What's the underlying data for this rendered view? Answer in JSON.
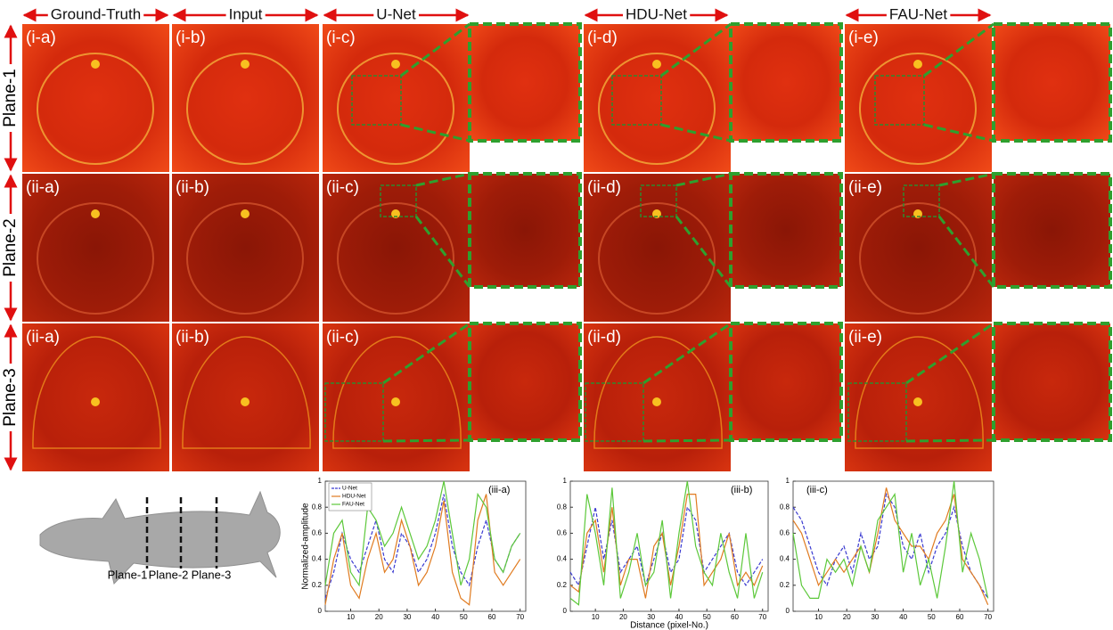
{
  "headers": [
    "Ground-Truth",
    "Input",
    "U-Net",
    "HDU-Net",
    "FAU-Net"
  ],
  "rows": [
    "Plane-1",
    "Plane-2",
    "Plane-3"
  ],
  "panels": [
    [
      "(i-a)",
      "(i-b)",
      "(i-c)",
      "(i-d)",
      "(i-e)"
    ],
    [
      "(ii-a)",
      "(ii-b)",
      "(ii-c)",
      "(ii-d)",
      "(ii-e)"
    ],
    [
      "(ii-a)",
      "(ii-b)",
      "(ii-c)",
      "(ii-d)",
      "(ii-e)"
    ]
  ],
  "plane_labels": [
    "Plane-1",
    "Plane-2",
    "Plane-3"
  ],
  "chart_data": [
    {
      "type": "line",
      "annotation": "(iii-a)",
      "ylabel": "Normalized-amplitude",
      "legend": true,
      "legend_position": "upper left",
      "x": [
        1,
        4,
        7,
        10,
        13,
        16,
        19,
        22,
        25,
        28,
        31,
        34,
        37,
        40,
        43,
        46,
        49,
        52,
        55,
        58,
        61,
        64,
        67,
        70
      ],
      "xlim": [
        1,
        72
      ],
      "xticks": [
        10,
        20,
        30,
        40,
        50,
        60,
        70
      ],
      "ylim": [
        0,
        1
      ],
      "yticks": [
        0,
        0.2,
        0.4,
        0.6,
        0.8,
        1
      ],
      "series": [
        {
          "name": "U-Net",
          "color": "#3a3ad0",
          "linestyle": "dashed",
          "values": [
            0.1,
            0.3,
            0.6,
            0.4,
            0.3,
            0.5,
            0.7,
            0.4,
            0.3,
            0.6,
            0.5,
            0.3,
            0.4,
            0.6,
            0.9,
            0.5,
            0.3,
            0.2,
            0.5,
            0.7,
            0.4,
            0.3,
            0.5,
            0.6
          ]
        },
        {
          "name": "HDU-Net",
          "color": "#e07b20",
          "linestyle": "solid",
          "values": [
            0.05,
            0.4,
            0.6,
            0.2,
            0.1,
            0.4,
            0.6,
            0.3,
            0.4,
            0.7,
            0.5,
            0.2,
            0.3,
            0.5,
            0.85,
            0.3,
            0.1,
            0.05,
            0.7,
            0.9,
            0.3,
            0.2,
            0.3,
            0.4
          ]
        },
        {
          "name": "FAU-Net",
          "color": "#5cc83a",
          "linestyle": "solid",
          "values": [
            0.2,
            0.6,
            0.7,
            0.3,
            0.2,
            0.8,
            0.7,
            0.5,
            0.6,
            0.8,
            0.6,
            0.4,
            0.5,
            0.7,
            1,
            0.6,
            0.2,
            0.4,
            0.9,
            0.8,
            0.4,
            0.3,
            0.5,
            0.6
          ]
        }
      ]
    },
    {
      "type": "line",
      "annotation": "(iii-b)",
      "xlabel": "Distance (pixel-No.)",
      "legend": false,
      "x": [
        1,
        4,
        7,
        10,
        13,
        16,
        19,
        22,
        25,
        28,
        31,
        34,
        37,
        40,
        43,
        46,
        49,
        52,
        55,
        58,
        61,
        64,
        67,
        70
      ],
      "xlim": [
        1,
        72
      ],
      "xticks": [
        10,
        20,
        30,
        40,
        50,
        60,
        70
      ],
      "ylim": [
        0,
        1
      ],
      "yticks": [
        0,
        0.2,
        0.4,
        0.6,
        0.8,
        1
      ],
      "series": [
        {
          "name": "U-Net",
          "color": "#3a3ad0",
          "linestyle": "dashed",
          "values": [
            0.3,
            0.2,
            0.5,
            0.8,
            0.4,
            0.7,
            0.3,
            0.4,
            0.5,
            0.2,
            0.4,
            0.6,
            0.3,
            0.4,
            0.8,
            0.7,
            0.3,
            0.4,
            0.5,
            0.6,
            0.3,
            0.2,
            0.3,
            0.4
          ]
        },
        {
          "name": "HDU-Net",
          "color": "#e07b20",
          "linestyle": "solid",
          "values": [
            0.2,
            0.15,
            0.6,
            0.7,
            0.3,
            0.8,
            0.2,
            0.4,
            0.4,
            0.1,
            0.5,
            0.6,
            0.2,
            0.5,
            0.9,
            0.9,
            0.2,
            0.3,
            0.4,
            0.6,
            0.2,
            0.3,
            0.2,
            0.35
          ]
        },
        {
          "name": "FAU-Net",
          "color": "#5cc83a",
          "linestyle": "solid",
          "values": [
            0.1,
            0.05,
            0.9,
            0.6,
            0.2,
            0.95,
            0.1,
            0.3,
            0.6,
            0.2,
            0.3,
            0.7,
            0.1,
            0.6,
            1,
            0.5,
            0.3,
            0.2,
            0.6,
            0.3,
            0.1,
            0.6,
            0.1,
            0.3
          ]
        }
      ]
    },
    {
      "type": "line",
      "annotation": "(iii-c)",
      "legend": false,
      "x": [
        1,
        4,
        7,
        10,
        13,
        16,
        19,
        22,
        25,
        28,
        31,
        34,
        37,
        40,
        43,
        46,
        49,
        52,
        55,
        58,
        61,
        64,
        67,
        70
      ],
      "xlim": [
        1,
        72
      ],
      "xticks": [
        10,
        20,
        30,
        40,
        50,
        60,
        70
      ],
      "ylim": [
        0,
        1
      ],
      "yticks": [
        0,
        0.2,
        0.4,
        0.6,
        0.8,
        1
      ],
      "series": [
        {
          "name": "U-Net",
          "color": "#3a3ad0",
          "linestyle": "dashed",
          "values": [
            0.8,
            0.7,
            0.5,
            0.3,
            0.2,
            0.4,
            0.5,
            0.3,
            0.6,
            0.4,
            0.5,
            0.9,
            0.8,
            0.5,
            0.4,
            0.6,
            0.3,
            0.5,
            0.6,
            0.8,
            0.5,
            0.3,
            0.2,
            0.1
          ]
        },
        {
          "name": "HDU-Net",
          "color": "#e07b20",
          "linestyle": "solid",
          "values": [
            0.7,
            0.6,
            0.4,
            0.2,
            0.3,
            0.4,
            0.3,
            0.4,
            0.5,
            0.3,
            0.6,
            0.95,
            0.7,
            0.6,
            0.5,
            0.5,
            0.4,
            0.6,
            0.7,
            0.9,
            0.4,
            0.3,
            0.2,
            0.05
          ]
        },
        {
          "name": "FAU-Net",
          "color": "#5cc83a",
          "linestyle": "solid",
          "values": [
            0.6,
            0.2,
            0.1,
            0.1,
            0.4,
            0.3,
            0.4,
            0.2,
            0.5,
            0.3,
            0.7,
            0.8,
            0.9,
            0.3,
            0.6,
            0.2,
            0.4,
            0.1,
            0.5,
            1,
            0.3,
            0.6,
            0.4,
            0.1
          ]
        }
      ]
    }
  ]
}
